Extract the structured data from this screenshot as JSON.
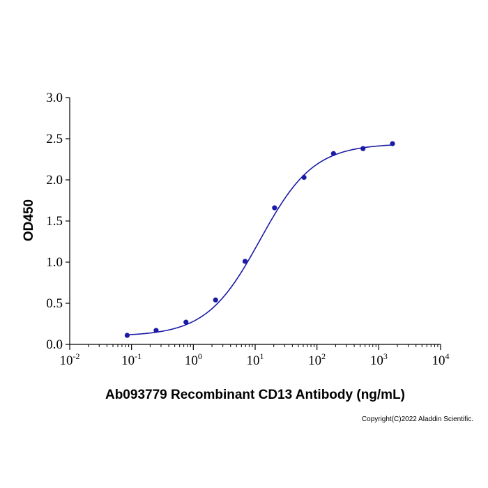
{
  "chart_data": {
    "type": "scatter",
    "title": "",
    "xlabel": "Ab093779 Recombinant CD13 Antibody (ng/mL)",
    "ylabel": "OD450",
    "x_scale": "log",
    "xlim": [
      0.01,
      10000
    ],
    "ylim": [
      0,
      3.0
    ],
    "x_ticks": [
      {
        "base": "10",
        "exp": "-2",
        "value": 0.01
      },
      {
        "base": "10",
        "exp": "-1",
        "value": 0.1
      },
      {
        "base": "10",
        "exp": "0",
        "value": 1
      },
      {
        "base": "10",
        "exp": "1",
        "value": 10
      },
      {
        "base": "10",
        "exp": "2",
        "value": 100
      },
      {
        "base": "10",
        "exp": "3",
        "value": 1000
      },
      {
        "base": "10",
        "exp": "4",
        "value": 10000
      }
    ],
    "y_ticks": [
      {
        "label": "0.0",
        "value": 0.0
      },
      {
        "label": "0.5",
        "value": 0.5
      },
      {
        "label": "1.0",
        "value": 1.0
      },
      {
        "label": "1.5",
        "value": 1.5
      },
      {
        "label": "2.0",
        "value": 2.0
      },
      {
        "label": "2.5",
        "value": 2.5
      },
      {
        "label": "3.0",
        "value": 3.0
      }
    ],
    "grid": false,
    "color": "#1a1aa6",
    "series": [
      {
        "x": [
          0.085,
          0.25,
          0.76,
          2.29,
          6.86,
          20.6,
          61.7,
          185,
          556,
          1667
        ],
        "y": [
          0.11,
          0.17,
          0.27,
          0.54,
          1.01,
          1.66,
          2.03,
          2.32,
          2.38,
          2.44
        ]
      }
    ],
    "fit_curve": {
      "model": "4PL",
      "bottom": 0.1,
      "top": 2.44,
      "ec50": 12,
      "hill": 1.0,
      "x_range": [
        0.085,
        1667
      ]
    }
  },
  "copyright": "Copyright(C)2022 Aladdin Scientific."
}
